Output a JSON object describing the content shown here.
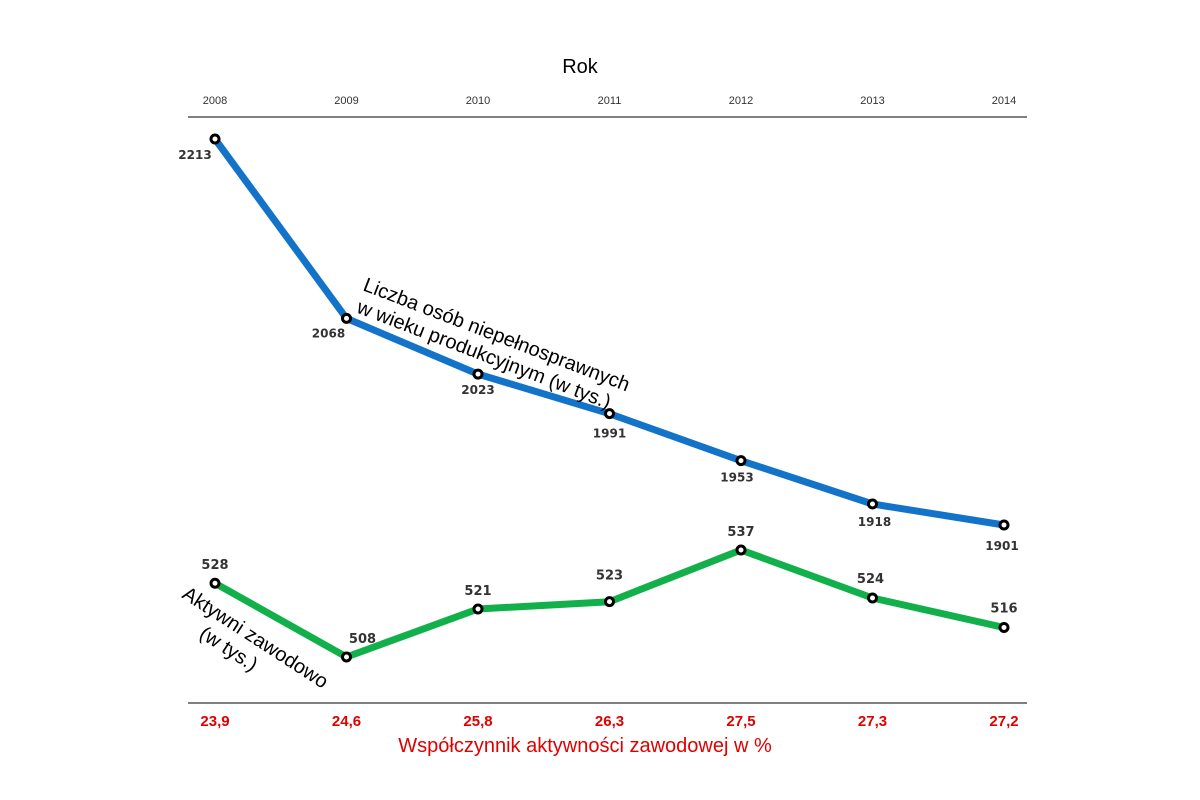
{
  "chart_data": {
    "type": "line",
    "title": "Rok",
    "categories": [
      "2008",
      "2009",
      "2010",
      "2011",
      "2012",
      "2013",
      "2014"
    ],
    "series": [
      {
        "name": "Liczba osób niepełnosprawnych w wieku produkcyjnym (w tys.)",
        "name_lines": [
          "Liczba osób niepełnosprawnych",
          "w wieku produkcyjnym (w tys.)"
        ],
        "values": [
          2213,
          2068,
          2023,
          1991,
          1953,
          1918,
          1901
        ],
        "color": "#1273c8"
      },
      {
        "name": "Aktywni zawodowo (w tys.)",
        "name_lines": [
          "Aktywni zawodowo",
          "(w tys.)"
        ],
        "values": [
          528,
          508,
          521,
          523,
          537,
          524,
          516
        ],
        "color": "#11b04a"
      }
    ],
    "bottom_axis": {
      "title": "Współczynnik aktywności zawodowej w %",
      "labels": [
        "23,9",
        "24,6",
        "25,8",
        "26,3",
        "27,5",
        "27,3",
        "27,2"
      ],
      "color": "#e00000"
    },
    "grid": false,
    "legend": "none"
  }
}
